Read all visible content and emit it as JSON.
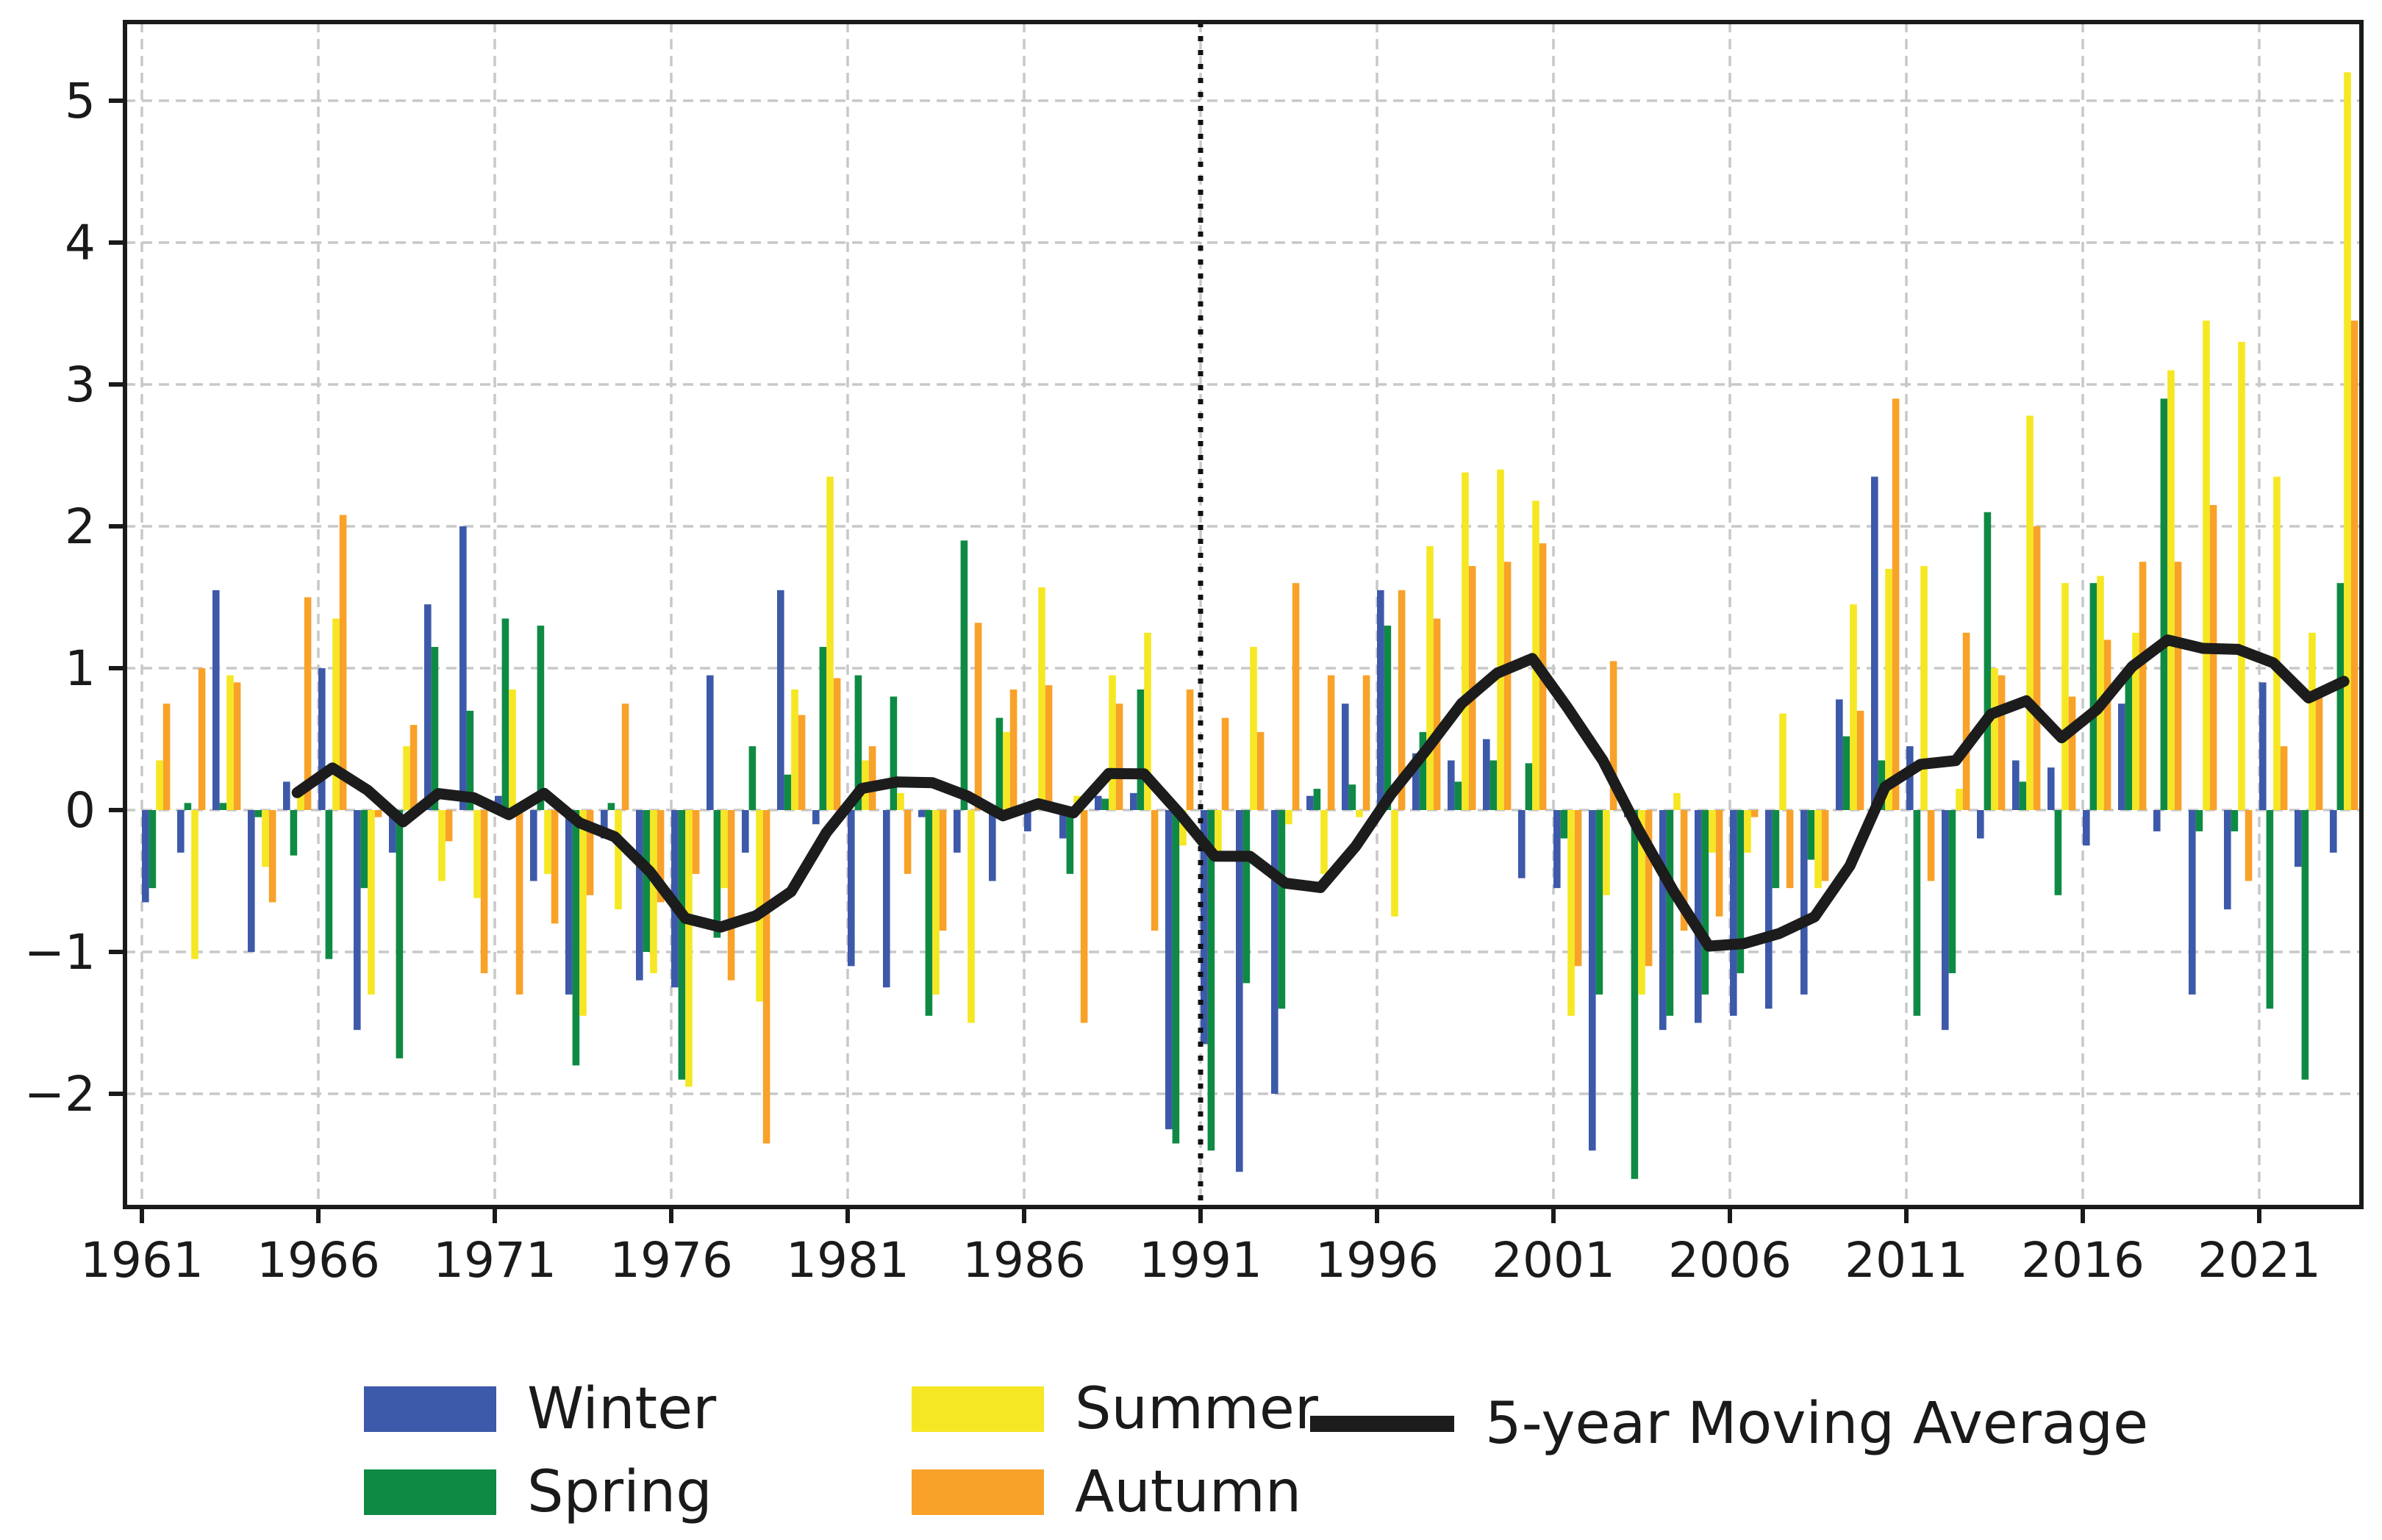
{
  "chart_data": {
    "type": "bar+line",
    "title": "",
    "xlabel": "",
    "ylabel": "",
    "years": [
      1961,
      1962,
      1963,
      1964,
      1965,
      1966,
      1967,
      1968,
      1969,
      1970,
      1971,
      1972,
      1973,
      1974,
      1975,
      1976,
      1977,
      1978,
      1979,
      1980,
      1981,
      1982,
      1983,
      1984,
      1985,
      1986,
      1987,
      1988,
      1989,
      1990,
      1991,
      1992,
      1993,
      1994,
      1995,
      1996,
      1997,
      1998,
      1999,
      2000,
      2001,
      2002,
      2003,
      2004,
      2005,
      2006,
      2007,
      2008,
      2009,
      2010,
      2011,
      2012,
      2013,
      2014,
      2015,
      2016,
      2017,
      2018,
      2019,
      2020,
      2021,
      2022,
      2023
    ],
    "series": [
      {
        "name": "Winter",
        "color": "#3d59a9",
        "values": [
          -0.65,
          -0.3,
          1.55,
          -1.0,
          0.2,
          1.0,
          -1.55,
          -0.3,
          1.45,
          2.0,
          0.1,
          -0.5,
          -1.3,
          -0.2,
          -1.2,
          -1.25,
          0.95,
          -0.3,
          1.55,
          -0.1,
          -1.1,
          -1.25,
          -0.05,
          -0.3,
          -0.5,
          -0.15,
          -0.2,
          0.1,
          0.12,
          -2.25,
          -1.65,
          -2.55,
          -2.0,
          0.1,
          0.75,
          1.55,
          0.4,
          0.35,
          0.5,
          -0.48,
          -0.55,
          -2.4,
          -0.05,
          -1.55,
          -1.5,
          -1.45,
          -1.4,
          -1.3,
          0.78,
          2.35,
          0.45,
          -1.55,
          -0.2,
          0.35,
          0.3,
          -0.25,
          0.75,
          -0.15,
          -1.3,
          -0.7,
          0.9,
          -0.4,
          -0.3
        ]
      },
      {
        "name": "Spring",
        "color": "#0f8a44",
        "values": [
          -0.55,
          0.05,
          0.05,
          -0.05,
          -0.32,
          -1.05,
          -0.55,
          -1.75,
          1.15,
          0.7,
          1.35,
          1.3,
          -1.8,
          0.05,
          -1.0,
          -1.9,
          -0.9,
          0.45,
          0.25,
          1.15,
          0.95,
          0.8,
          -1.45,
          1.9,
          0.65,
          0.05,
          -0.45,
          0.08,
          0.85,
          -2.35,
          -2.4,
          -1.22,
          -1.4,
          0.15,
          0.18,
          1.3,
          0.55,
          0.2,
          0.35,
          0.33,
          -0.2,
          -1.3,
          -2.6,
          -1.45,
          -1.3,
          -1.15,
          -0.55,
          -0.35,
          0.52,
          0.35,
          -1.45,
          -1.15,
          2.1,
          0.2,
          -0.6,
          1.6,
          1.0,
          2.9,
          -0.15,
          -0.15,
          -1.4,
          -1.9,
          1.6
        ]
      },
      {
        "name": "Summer",
        "color": "#f5e723",
        "values": [
          0.35,
          -1.05,
          0.95,
          -0.4,
          0.13,
          1.35,
          -1.3,
          0.45,
          -0.5,
          -0.62,
          0.85,
          -0.45,
          -1.45,
          -0.7,
          -1.15,
          -1.95,
          -0.55,
          -1.35,
          0.85,
          2.35,
          0.35,
          0.12,
          -1.3,
          -1.5,
          0.55,
          1.57,
          0.1,
          0.95,
          1.25,
          -0.25,
          -0.3,
          1.15,
          -0.1,
          -0.45,
          -0.05,
          -0.75,
          1.86,
          2.38,
          2.4,
          2.18,
          -1.45,
          -0.6,
          -1.3,
          0.12,
          -0.3,
          -0.3,
          0.68,
          -0.55,
          1.45,
          1.7,
          1.72,
          0.15,
          1.0,
          2.78,
          1.6,
          1.65,
          1.25,
          3.1,
          3.45,
          3.3,
          2.35,
          1.25,
          5.2
        ]
      },
      {
        "name": "Autumn",
        "color": "#f8a229",
        "values": [
          0.75,
          1.0,
          0.9,
          -0.65,
          1.5,
          2.08,
          -0.05,
          0.6,
          -0.22,
          -1.15,
          -1.3,
          -0.8,
          -0.6,
          0.75,
          -0.65,
          -0.45,
          -1.2,
          -2.35,
          0.67,
          0.93,
          0.45,
          -0.45,
          -0.85,
          1.32,
          0.85,
          0.88,
          -1.5,
          0.75,
          -0.85,
          0.85,
          0.65,
          0.55,
          1.6,
          0.95,
          0.95,
          1.55,
          1.35,
          1.72,
          1.75,
          1.88,
          -1.1,
          1.05,
          -1.1,
          -0.85,
          -0.75,
          -0.05,
          -0.55,
          -0.5,
          0.7,
          2.9,
          -0.5,
          1.25,
          0.95,
          2.0,
          0.8,
          1.2,
          1.75,
          1.75,
          2.15,
          -0.5,
          0.45,
          0.85,
          3.45
        ]
      }
    ],
    "moving_average": {
      "label": "5-year Moving Average",
      "window": 5,
      "color": "#1c1c1c",
      "start_year": 1965
    },
    "reference_line_year": 1991,
    "y_ticks": [
      -2,
      -1,
      0,
      1,
      2,
      3,
      4,
      5
    ],
    "x_ticks": [
      1961,
      1966,
      1971,
      1976,
      1981,
      1986,
      1991,
      1996,
      2001,
      2006,
      2011,
      2016,
      2021
    ],
    "ylim": [
      -2.8,
      5.55
    ],
    "grid": true,
    "legend_position": "below",
    "legend": {
      "winter": "Winter",
      "spring": "Spring",
      "summer": "Summer",
      "autumn": "Autumn",
      "ma": "5-year Moving Average"
    },
    "colors": {
      "grid": "#c8c8c8",
      "spine": "#1a1a1a",
      "tick_label": "#1a1a1a",
      "reference_line": "#111111",
      "background": "#ffffff"
    }
  }
}
